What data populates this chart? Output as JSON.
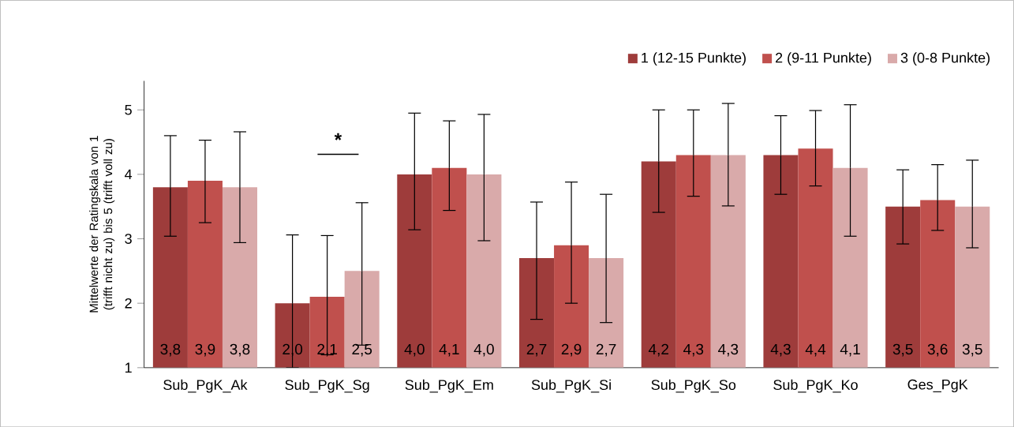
{
  "chart_data": {
    "type": "bar",
    "ylabel": "Mittelwerte der Ratingskala von 1 (trifft nicht zu) bis 5 (trifft voll zu)",
    "categories": [
      "Sub_PgK_Ak",
      "Sub_PgK_Sg",
      "Sub_PgK_Em",
      "Sub_PgK_Si",
      "Sub_PgK_So",
      "Sub_PgK_Ko",
      "Ges_PgK"
    ],
    "series": [
      {
        "name": "1 (12-15 Punkte)",
        "color": "#9e3c3b",
        "values": [
          3.8,
          2.0,
          4.0,
          2.7,
          4.2,
          4.3,
          3.5
        ],
        "value_labels": [
          "3,8",
          "2,0",
          "4,0",
          "2,7",
          "4,2",
          "4,3",
          "3,5"
        ],
        "errors": [
          [
            3.04,
            4.6
          ],
          [
            1.0,
            3.06
          ],
          [
            3.14,
            4.95
          ],
          [
            1.75,
            3.57
          ],
          [
            3.41,
            5.0
          ],
          [
            3.69,
            4.91
          ],
          [
            2.92,
            4.07
          ]
        ]
      },
      {
        "name": "2 (9-11 Punkte)",
        "color": "#c0504d",
        "values": [
          3.9,
          2.1,
          4.1,
          2.9,
          4.3,
          4.4,
          3.6
        ],
        "value_labels": [
          "3,9",
          "2,1",
          "4,1",
          "2,9",
          "4,3",
          "4,4",
          "3,6"
        ],
        "errors": [
          [
            3.25,
            4.53
          ],
          [
            1.2,
            3.05
          ],
          [
            3.44,
            4.83
          ],
          [
            2.0,
            3.88
          ],
          [
            3.66,
            5.0
          ],
          [
            3.82,
            4.99
          ],
          [
            3.13,
            4.15
          ]
        ]
      },
      {
        "name": "3 (0-8 Punkte)",
        "color": "#d9aaaa",
        "values": [
          3.8,
          2.5,
          4.0,
          2.7,
          4.3,
          4.1,
          3.5
        ],
        "value_labels": [
          "3,8",
          "2,5",
          "4,0",
          "2,7",
          "4,3",
          "4,1",
          "3,5"
        ],
        "errors": [
          [
            2.94,
            4.66
          ],
          [
            1.35,
            3.56
          ],
          [
            2.97,
            4.93
          ],
          [
            1.7,
            3.69
          ],
          [
            3.51,
            5.1
          ],
          [
            3.04,
            5.08
          ],
          [
            2.86,
            4.22
          ]
        ]
      }
    ],
    "ylim": [
      1,
      5.45
    ],
    "yticks": [
      1,
      2,
      3,
      4,
      5
    ],
    "annotations": [
      "*"
    ],
    "legend": "top right",
    "grid": false
  }
}
